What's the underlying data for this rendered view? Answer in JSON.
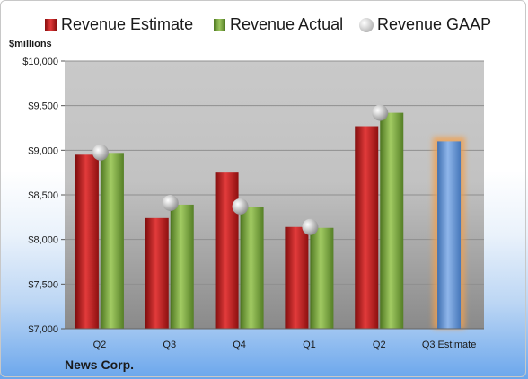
{
  "chart_data": {
    "type": "bar",
    "categories": [
      "Q2",
      "Q3",
      "Q4",
      "Q1",
      "Q2",
      "Q3 Estimate"
    ],
    "series": [
      {
        "name": "Revenue Estimate",
        "color": "#cc1f1f",
        "values": [
          8950,
          8240,
          8750,
          8140,
          9270,
          null
        ]
      },
      {
        "name": "Revenue Actual",
        "color": "#7fa844",
        "values": [
          8970,
          8390,
          8360,
          8130,
          9420,
          null
        ]
      },
      {
        "name": "Revenue GAAP",
        "color": "#b5b5b5",
        "marker": "sphere",
        "values": [
          8975,
          8410,
          8370,
          8140,
          9420,
          null
        ]
      }
    ],
    "forecast": {
      "category": "Q3 Estimate",
      "value": 9100,
      "color": "#6f9bd6",
      "highlight": "#f0a050"
    },
    "ylabel": "$millions",
    "ylim": [
      7000,
      10000
    ],
    "yticks": [
      7000,
      7500,
      8000,
      8500,
      9000,
      9500,
      10000
    ],
    "ytick_labels": [
      "$7,000",
      "$7,500",
      "$8,000",
      "$8,500",
      "$9,000",
      "$9,500",
      "$10,000"
    ],
    "grid": true,
    "legend": "top"
  },
  "footer": {
    "company": "News Corp."
  }
}
